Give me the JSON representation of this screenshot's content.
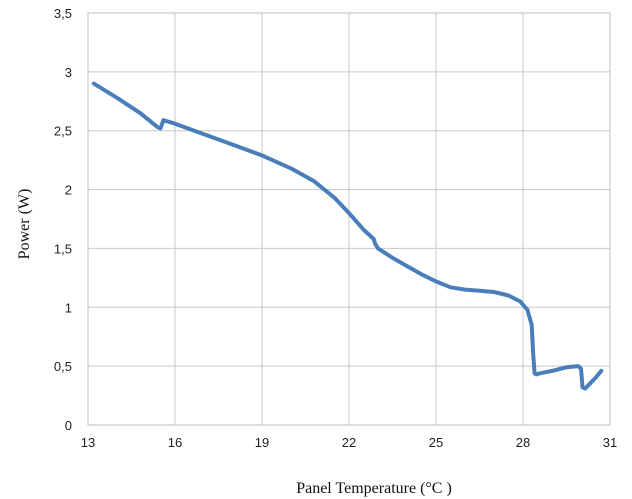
{
  "chart_data": {
    "type": "line",
    "title": "",
    "xlabel": "Panel Temperature  (°C )",
    "ylabel": "Power  (W)",
    "xlim": [
      13,
      31
    ],
    "ylim": [
      0,
      3.5
    ],
    "x_ticks": [
      13,
      16,
      19,
      22,
      25,
      28,
      31
    ],
    "x_tick_labels": [
      "13",
      "16",
      "19",
      "22",
      "25",
      "28",
      "31"
    ],
    "y_ticks": [
      0,
      0.5,
      1,
      1.5,
      2,
      2.5,
      3,
      3.5
    ],
    "y_tick_labels": [
      "0",
      "0,5",
      "1",
      "1,5",
      "2",
      "2,5",
      "3",
      "3,5"
    ],
    "grid": true,
    "legend": "none",
    "series_color": "#4a7ebb",
    "series": [
      {
        "x": [
          13.2,
          14.0,
          14.8,
          15.4,
          15.5,
          15.6,
          16.0,
          17.0,
          18.0,
          19.0,
          20.0,
          20.8,
          21.5,
          22.0,
          22.5,
          22.85,
          22.9,
          23.0,
          23.5,
          24.0,
          24.5,
          25.0,
          25.5,
          26.0,
          26.5,
          27.0,
          27.5,
          27.9,
          28.15,
          28.3,
          28.35,
          28.4,
          28.45,
          28.6,
          29.0,
          29.5,
          29.9,
          30.0,
          30.05,
          30.15,
          30.3,
          30.5,
          30.7
        ],
        "y": [
          2.9,
          2.78,
          2.65,
          2.53,
          2.52,
          2.59,
          2.56,
          2.47,
          2.38,
          2.29,
          2.18,
          2.07,
          1.93,
          1.8,
          1.66,
          1.58,
          1.54,
          1.5,
          1.42,
          1.35,
          1.28,
          1.22,
          1.17,
          1.15,
          1.14,
          1.13,
          1.1,
          1.05,
          0.98,
          0.85,
          0.6,
          0.44,
          0.43,
          0.44,
          0.46,
          0.49,
          0.5,
          0.48,
          0.32,
          0.31,
          0.35,
          0.4,
          0.46
        ]
      }
    ]
  }
}
